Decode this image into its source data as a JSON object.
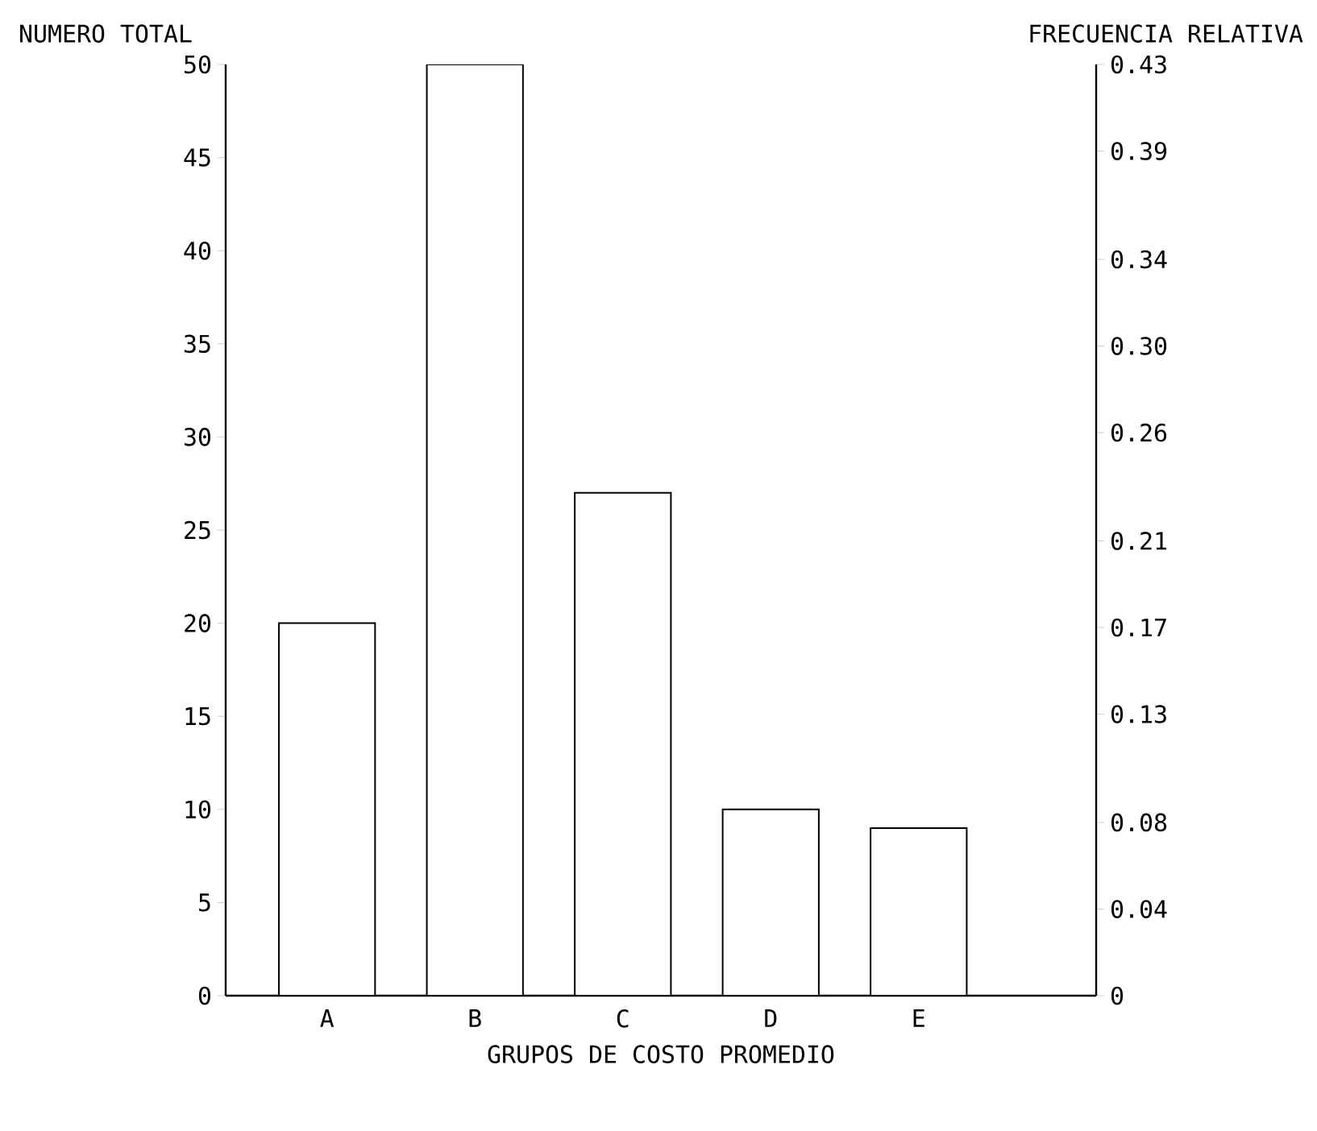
{
  "chart_data": {
    "type": "bar",
    "categories": [
      "A",
      "B",
      "C",
      "D",
      "E"
    ],
    "values": [
      20,
      50,
      27,
      10,
      9
    ],
    "color": "#ffffff",
    "xlabel": "GRUPOS DE COSTO PROMEDIO",
    "ylabel": "NUMERO TOTAL",
    "y2label": "FRECUENCIA RELATIVA",
    "ylim": [
      0,
      50
    ],
    "yticks": [
      0,
      5,
      10,
      15,
      20,
      25,
      30,
      35,
      40,
      45,
      50
    ],
    "y2lim": [
      0,
      0.43
    ],
    "y2ticks": [
      0,
      0.04,
      0.08,
      0.13,
      0.17,
      0.21,
      0.26,
      {
        "value": 0.3,
        "label": "0.30"
      },
      0.34,
      0.39,
      0.43
    ],
    "grid": false
  }
}
